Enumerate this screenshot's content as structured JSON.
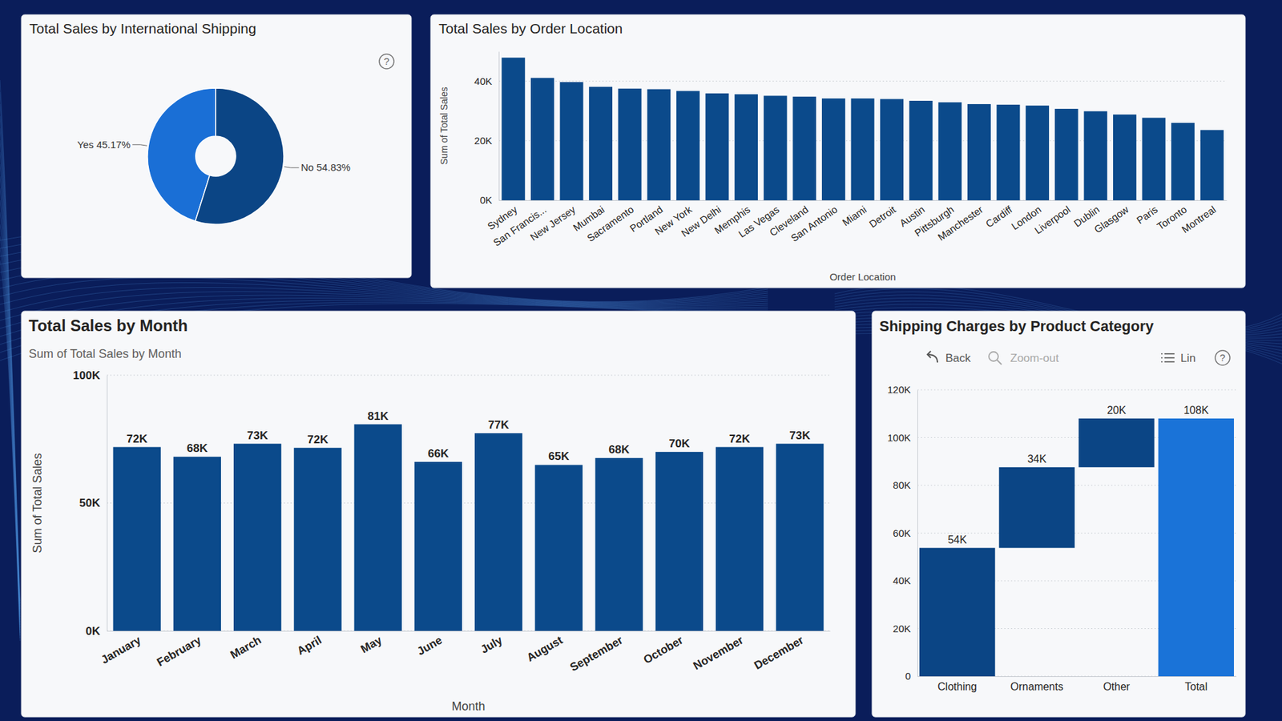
{
  "chart_data": [
    {
      "type": "pie",
      "title": "Total Sales by International Shipping",
      "categories": [
        "Yes",
        "No"
      ],
      "values": [
        45.17,
        54.83
      ],
      "value_labels": [
        "Yes 45.17%",
        "No 54.83%"
      ],
      "data_labels": true,
      "colors": [
        "#1a6fd6",
        "#0b4585"
      ],
      "annotations": [
        "?"
      ]
    },
    {
      "type": "bar",
      "title": "Total Sales by Order Location",
      "xlabel": "Order Location",
      "ylabel": "Sum of Total Sales",
      "categories": [
        "Sydney",
        "San Francis...",
        "New Jersey",
        "Mumbai",
        "Sacramento",
        "Portland",
        "New York",
        "New Delhi",
        "Memphis",
        "Las Vegas",
        "Cleveland",
        "San Antonio",
        "Miami",
        "Detroit",
        "Austin",
        "Pittsburgh",
        "Manchester",
        "Cardiff",
        "London",
        "Liverpool",
        "Dublin",
        "Glasgow",
        "Paris",
        "Toronto",
        "Montreal"
      ],
      "values": [
        47900,
        41100,
        39700,
        38100,
        37500,
        37300,
        36700,
        35900,
        35600,
        35100,
        34800,
        34200,
        34200,
        34000,
        33400,
        32900,
        32300,
        32100,
        31800,
        30700,
        29900,
        28800,
        27700,
        26000,
        23600
      ],
      "color": "#0b4a8b",
      "ylim": [
        0,
        50000
      ],
      "yticks": [
        {
          "value": 0,
          "label": "0K"
        },
        {
          "value": 20000,
          "label": "20K"
        },
        {
          "value": 40000,
          "label": "40K"
        }
      ],
      "grid": true
    },
    {
      "type": "bar",
      "title": "Total Sales by Month",
      "subtitle": "Sum of Total Sales by Month",
      "xlabel": "Month",
      "ylabel": "Sum of Total Sales",
      "categories": [
        "January",
        "February",
        "March",
        "April",
        "May",
        "June",
        "July",
        "August",
        "September",
        "October",
        "November",
        "December"
      ],
      "values": [
        71900,
        68100,
        73200,
        71600,
        80800,
        66100,
        77300,
        64900,
        67600,
        70000,
        71900,
        73200
      ],
      "value_labels": [
        "72K",
        "68K",
        "73K",
        "72K",
        "81K",
        "66K",
        "77K",
        "65K",
        "68K",
        "70K",
        "72K",
        "73K"
      ],
      "data_labels": true,
      "color": "#0b4a8b",
      "ylim": [
        0,
        100000
      ],
      "yticks": [
        {
          "value": 0,
          "label": "0K"
        },
        {
          "value": 50000,
          "label": "50K"
        },
        {
          "value": 100000,
          "label": "100K"
        }
      ],
      "grid": true
    },
    {
      "type": "waterfall",
      "title": "Shipping Charges by Product Category",
      "categories": [
        "Clothing",
        "Ornaments",
        "Other",
        "Total"
      ],
      "values": [
        53800,
        33800,
        20400,
        108000
      ],
      "value_labels": [
        "54K",
        "34K",
        "20K",
        "108K"
      ],
      "data_labels": true,
      "colors": [
        "#0b4585",
        "#0b4585",
        "#0b4585",
        "#1a73d8"
      ],
      "ylim": [
        0,
        120000
      ],
      "yticks": [
        0,
        {
          "value": 20000,
          "label": "20K"
        },
        {
          "value": 40000,
          "label": "40K"
        },
        {
          "value": 60000,
          "label": "60K"
        },
        {
          "value": 80000,
          "label": "80K"
        },
        {
          "value": 100000,
          "label": "100K"
        },
        {
          "value": 120000,
          "label": "120K"
        }
      ],
      "grid": true,
      "annotations": [
        "Back",
        "Zoom-out",
        "Lin",
        "?"
      ]
    }
  ]
}
